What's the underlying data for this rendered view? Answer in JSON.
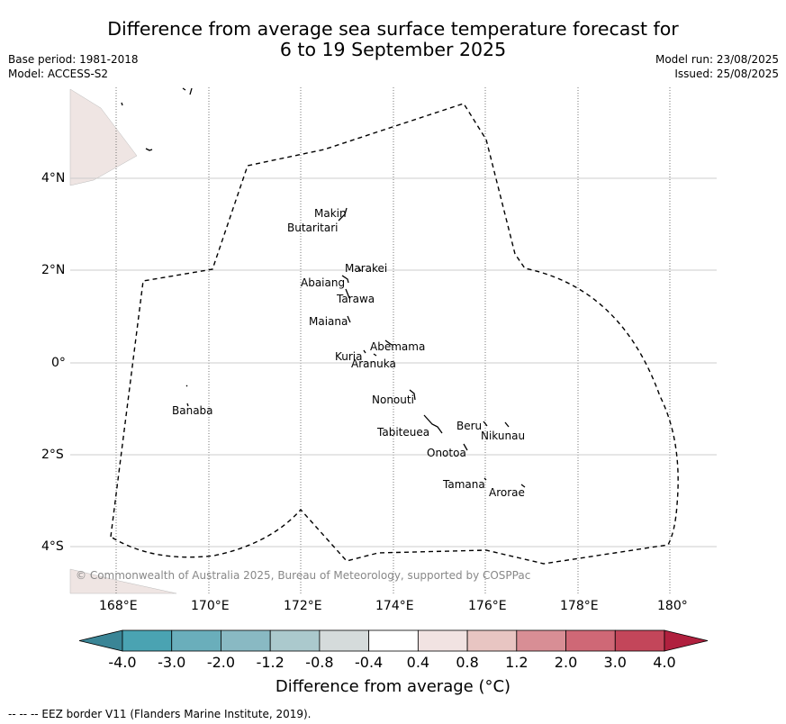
{
  "header": {
    "title_line1": "Difference from average sea surface temperature forecast for",
    "title_line2": "6 to 19 September 2025",
    "base_period": "Base period: 1981-2018",
    "model": "Model: ACCESS-S2",
    "model_run": "Model run: 23/08/2025",
    "issued": "Issued: 25/08/2025"
  },
  "map": {
    "lon_ticks": [
      "168°E",
      "170°E",
      "172°E",
      "174°E",
      "176°E",
      "178°E",
      "180°"
    ],
    "lat_ticks": [
      "4°N",
      "2°N",
      "0°",
      "2°S",
      "4°S"
    ],
    "islands": [
      {
        "name": "Makin"
      },
      {
        "name": "Butaritari"
      },
      {
        "name": "Marakei"
      },
      {
        "name": "Abaiang"
      },
      {
        "name": "Tarawa"
      },
      {
        "name": "Maiana"
      },
      {
        "name": "Abemama"
      },
      {
        "name": "Kuria"
      },
      {
        "name": "Aranuka"
      },
      {
        "name": "Nonouti"
      },
      {
        "name": "Banaba"
      },
      {
        "name": "Beru"
      },
      {
        "name": "Tabiteuea"
      },
      {
        "name": "Nikunau"
      },
      {
        "name": "Onotoa"
      },
      {
        "name": "Tamana"
      },
      {
        "name": "Arorae"
      }
    ],
    "copyright": "© Commonwealth of Australia 2025, Bureau of Meteorology, supported by COSPPac",
    "land_color": "#efe5e3"
  },
  "colorbar": {
    "label": "Difference from average (°C)",
    "ticks": [
      "-4.0",
      "-3.0",
      "-2.0",
      "-1.2",
      "-0.8",
      "-0.4",
      "0.4",
      "0.8",
      "1.2",
      "2.0",
      "3.0",
      "4.0"
    ],
    "colors": [
      "#3a8596",
      "#4aa3b2",
      "#6aaebb",
      "#89b9c3",
      "#abc9cd",
      "#d5dbdb",
      "#ffffff",
      "#f1e3e2",
      "#e8c5c2",
      "#d88e95",
      "#cf6876",
      "#c3465a",
      "#b0203e"
    ]
  },
  "footnote": "--  --  -- EEZ border V11 (Flanders Marine Institute, 2019)."
}
